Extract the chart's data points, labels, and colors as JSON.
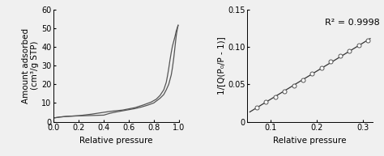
{
  "left": {
    "xlabel": "Relative pressure",
    "ylabel": "Amount adsorbed\n(cm³/g STP)",
    "xlim": [
      0,
      1.0
    ],
    "ylim": [
      0,
      60
    ],
    "xticks": [
      0,
      0.2,
      0.4,
      0.6,
      0.8,
      1.0
    ],
    "yticks": [
      0,
      10,
      20,
      30,
      40,
      50,
      60
    ],
    "line_color": "#555555",
    "adsorption_x": [
      0.0,
      0.05,
      0.1,
      0.15,
      0.2,
      0.25,
      0.3,
      0.35,
      0.4,
      0.45,
      0.5,
      0.55,
      0.6,
      0.65,
      0.7,
      0.75,
      0.8,
      0.85,
      0.88,
      0.9,
      0.92,
      0.94,
      0.95,
      0.96,
      0.97,
      0.975,
      0.98,
      0.985,
      0.99,
      0.995
    ],
    "adsorption_y": [
      2.0,
      2.5,
      2.8,
      3.0,
      3.1,
      3.2,
      3.3,
      3.4,
      3.5,
      4.5,
      5.2,
      5.8,
      6.4,
      7.0,
      7.8,
      8.8,
      10.0,
      12.5,
      14.5,
      17.0,
      20.0,
      25.0,
      29.0,
      34.0,
      40.0,
      43.0,
      46.0,
      48.0,
      50.0,
      51.5
    ],
    "desorption_x": [
      0.995,
      0.99,
      0.985,
      0.98,
      0.975,
      0.97,
      0.96,
      0.95,
      0.94,
      0.93,
      0.92,
      0.91,
      0.9,
      0.88,
      0.85,
      0.82,
      0.78,
      0.72,
      0.65,
      0.55,
      0.45,
      0.4,
      0.35,
      0.3,
      0.25,
      0.2,
      0.15,
      0.1,
      0.05,
      0.0
    ],
    "desorption_y": [
      51.5,
      50.5,
      49.5,
      48.5,
      47.0,
      45.5,
      43.0,
      40.5,
      37.0,
      33.0,
      28.5,
      24.5,
      21.0,
      17.0,
      14.0,
      12.0,
      10.5,
      9.0,
      7.5,
      6.2,
      5.5,
      5.0,
      4.5,
      4.0,
      3.6,
      3.2,
      3.0,
      2.8,
      2.5,
      2.0
    ]
  },
  "right": {
    "xlabel": "Relative pressure",
    "ylabel": "1/[Q(P₀/P - 1)]",
    "xlim": [
      0.05,
      0.32
    ],
    "ylim": [
      0,
      0.15
    ],
    "xticks": [
      0.1,
      0.2,
      0.3
    ],
    "yticks": [
      0,
      0.05,
      0.1,
      0.15
    ],
    "ytick_labels": [
      "0",
      "0.05",
      "0.10",
      "0.15"
    ],
    "annotation": "R² = 0.9998",
    "line_color": "#333333",
    "marker_color": "white",
    "marker_edge_color": "#555555",
    "scatter_x": [
      0.07,
      0.09,
      0.11,
      0.13,
      0.15,
      0.17,
      0.19,
      0.21,
      0.23,
      0.25,
      0.27,
      0.29,
      0.31
    ],
    "scatter_y": [
      0.019,
      0.026,
      0.033,
      0.04,
      0.048,
      0.056,
      0.064,
      0.072,
      0.08,
      0.088,
      0.095,
      0.102,
      0.108
    ],
    "fit_x": [
      0.055,
      0.315
    ],
    "fit_y": [
      0.013,
      0.111
    ]
  },
  "background_color": "#f0f0f0",
  "tick_labelsize": 7,
  "label_fontsize": 7.5
}
